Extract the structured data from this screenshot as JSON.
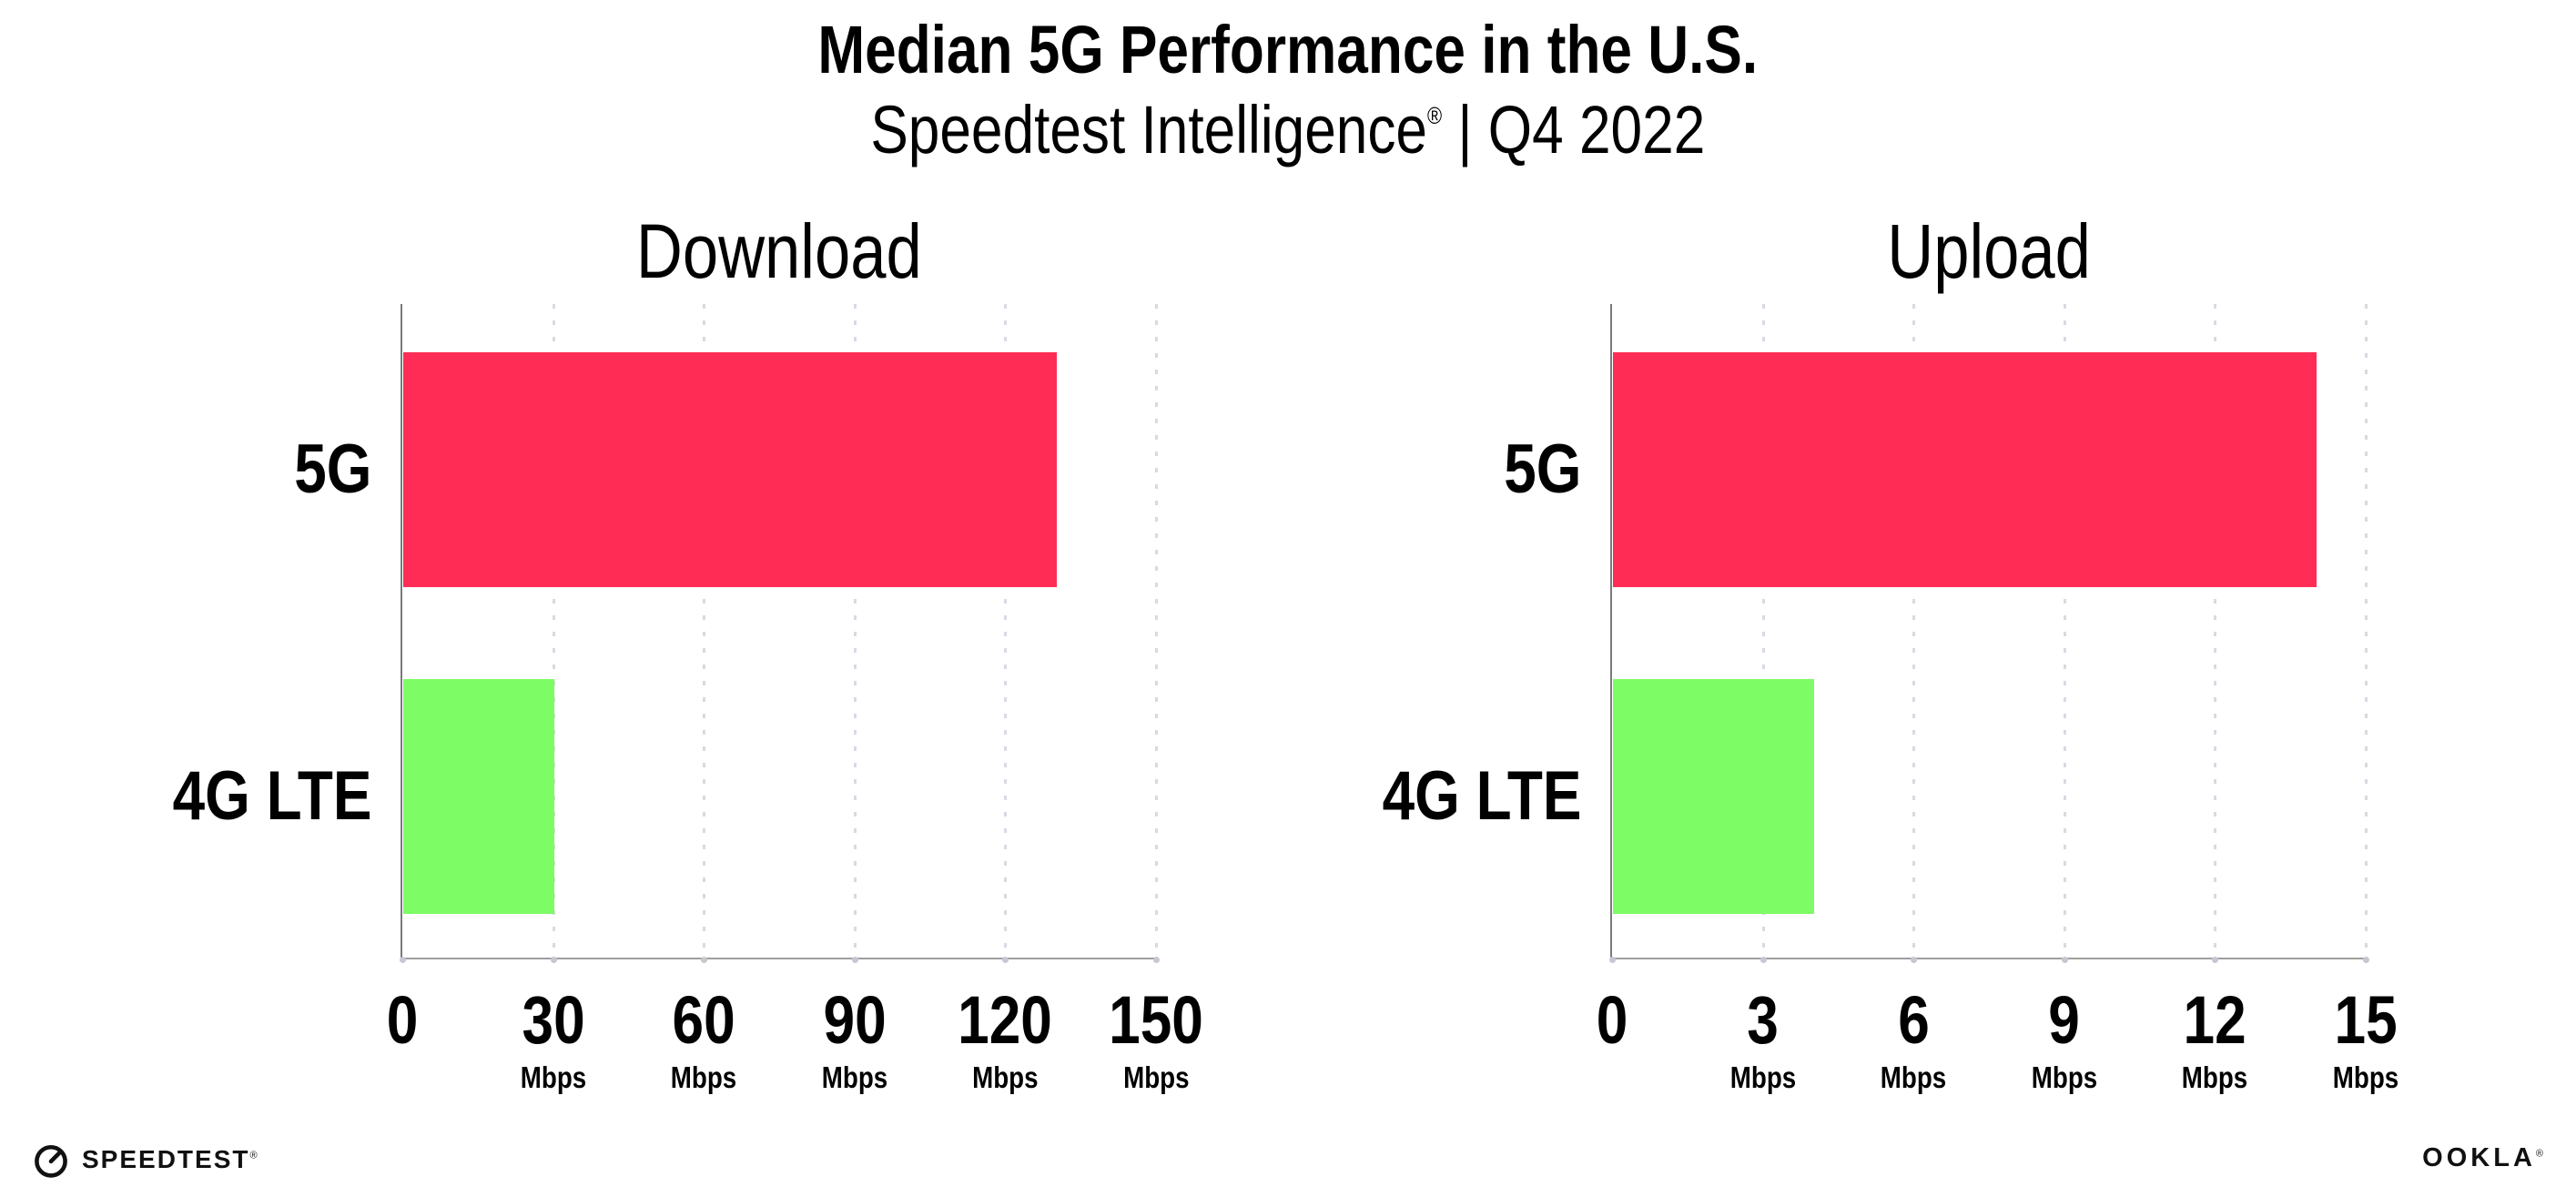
{
  "header": {
    "subtitle_brand": "Speedtest Intelligence",
    "subtitle_reg": "®",
    "subtitle_rest": " | Q4 2022"
  },
  "chart_data": {
    "type": "bar",
    "orientation": "horizontal",
    "title": "Median 5G Performance in the U.S.",
    "subtitle": "Speedtest Intelligence® | Q4 2022",
    "categories": [
      "5G",
      "4G LTE"
    ],
    "unit": "Mbps",
    "legend": "none",
    "grid": "vertical-dotted",
    "bar_colors": [
      "#FF2D55",
      "#7DFC66"
    ],
    "panels": [
      {
        "title": "Download",
        "values": [
          130,
          30
        ],
        "xlim": [
          0,
          150
        ],
        "xticks": [
          0,
          30,
          60,
          90,
          120,
          150
        ]
      },
      {
        "title": "Upload",
        "values": [
          14,
          4
        ],
        "xlim": [
          0,
          15
        ],
        "xticks": [
          0,
          3,
          6,
          9,
          12,
          15
        ]
      }
    ]
  },
  "colors": {
    "bar_5g": "#FF2D55",
    "bar_4g_lte": "#7DFC66",
    "gridline": "#D9D9E3",
    "x_axis": "#9E9E9E",
    "y_axis": "#7A7A7A",
    "text": "#000000",
    "background": "#FFFFFF"
  },
  "footer": {
    "speedtest_label": "SPEEDTEST",
    "speedtest_reg": "®",
    "ookla_label": "OOKLA",
    "ookla_reg": "®"
  }
}
